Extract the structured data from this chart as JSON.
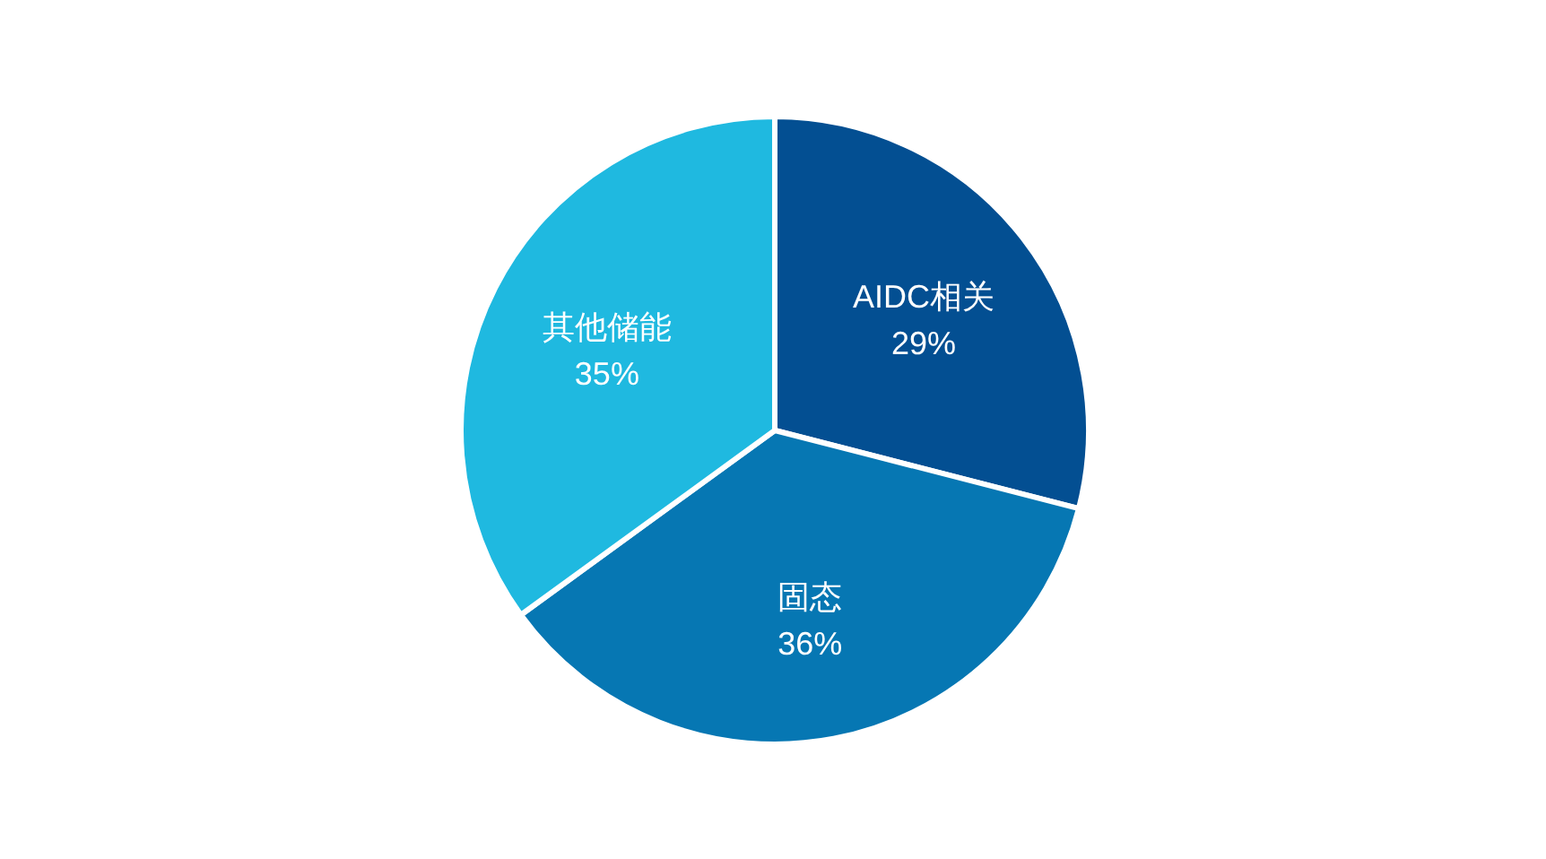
{
  "chart_data": {
    "type": "pie",
    "categories": [
      "AIDC相关",
      "固态",
      "其他储能"
    ],
    "values": [
      29,
      36,
      35
    ],
    "value_labels": [
      "29%",
      "36%",
      "35%"
    ],
    "colors": [
      "#034f92",
      "#0677b3",
      "#1fb9e0"
    ]
  }
}
